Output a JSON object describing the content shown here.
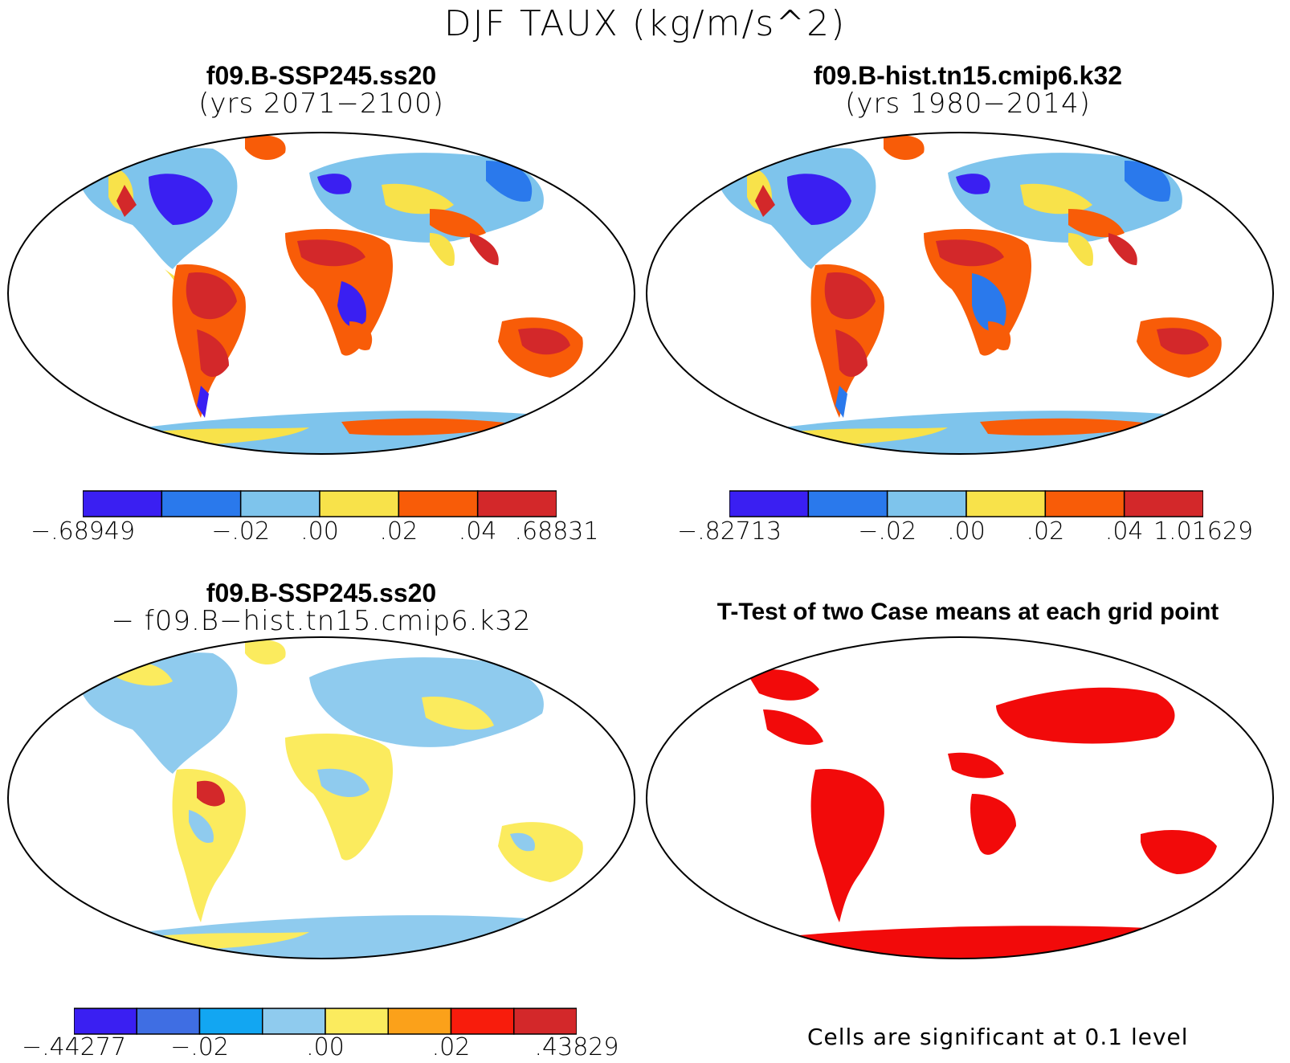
{
  "title": "DJF TAUX (kg/m/s^2)",
  "panels": [
    {
      "id": "case1",
      "title_line1": "f09.B-SSP245.ss20",
      "title_line2": "(yrs 2071−2100)",
      "colorbar": {
        "colors": [
          "#3a1ff2",
          "#2a79ec",
          "#7ec4ec",
          "#f8e24a",
          "#f85c08",
          "#d3282a"
        ],
        "labels": [
          "−.68949",
          "",
          "−.02",
          ".00",
          ".02",
          ".04",
          ".68831"
        ]
      }
    },
    {
      "id": "case2",
      "title_line1": "f09.B-hist.tn15.cmip6.k32",
      "title_line2": "(yrs 1980−2014)",
      "colorbar": {
        "colors": [
          "#3a1ff2",
          "#2a79ec",
          "#7ec4ec",
          "#f8e24a",
          "#f85c08",
          "#d3282a"
        ],
        "labels": [
          "−.82713",
          "",
          "−.02",
          ".00",
          ".02",
          ".04",
          "1.01629"
        ]
      }
    },
    {
      "id": "diff",
      "title_line1": "f09.B-SSP245.ss20",
      "title_line2": "− f09.B−hist.tn15.cmip6.k32",
      "colorbar": {
        "colors": [
          "#3a1ff2",
          "#3f6ee3",
          "#12a6f2",
          "#8fcbee",
          "#fbeb5e",
          "#fba11a",
          "#f81c0c",
          "#d3282a"
        ],
        "labels": [
          "−.44277",
          "",
          "−.02",
          "",
          ".00",
          "",
          ".02",
          "",
          ".43829"
        ]
      }
    },
    {
      "id": "ttest",
      "title_line1": "T-Test of two Case means at each grid point",
      "note": "Cells are significant at 0.1 level",
      "significant_color": "#f20a0a"
    }
  ]
}
